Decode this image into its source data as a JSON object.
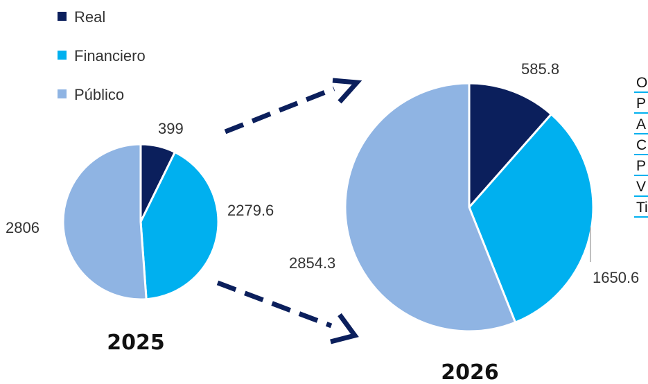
{
  "colors": {
    "real": "#0b1f5c",
    "financiero": "#00b0ef",
    "publico": "#8fb4e3",
    "arrow": "#0b1f5c",
    "underline": "#00b0ef"
  },
  "chart_data": [
    {
      "type": "pie",
      "title": "2025",
      "legend": [
        "Real",
        "Financiero",
        "Público"
      ],
      "slices": [
        {
          "name": "Real",
          "value": 399,
          "label": "399"
        },
        {
          "name": "Financiero",
          "value": 2279.6,
          "label": "2279.6"
        },
        {
          "name": "Público",
          "value": 2806,
          "label": "2806"
        }
      ]
    },
    {
      "type": "pie",
      "title": "2026",
      "legend": [
        "Real",
        "Financiero",
        "Público"
      ],
      "slices": [
        {
          "name": "Real",
          "value": 585.8,
          "label": "585.8"
        },
        {
          "name": "Financiero",
          "value": 1650.6,
          "label": "1650.6"
        },
        {
          "name": "Público",
          "value": 2854.3,
          "label": "2854.3"
        }
      ]
    }
  ],
  "side_list": [
    "O",
    "P",
    "A",
    "C",
    "P",
    "V",
    "Ti"
  ]
}
